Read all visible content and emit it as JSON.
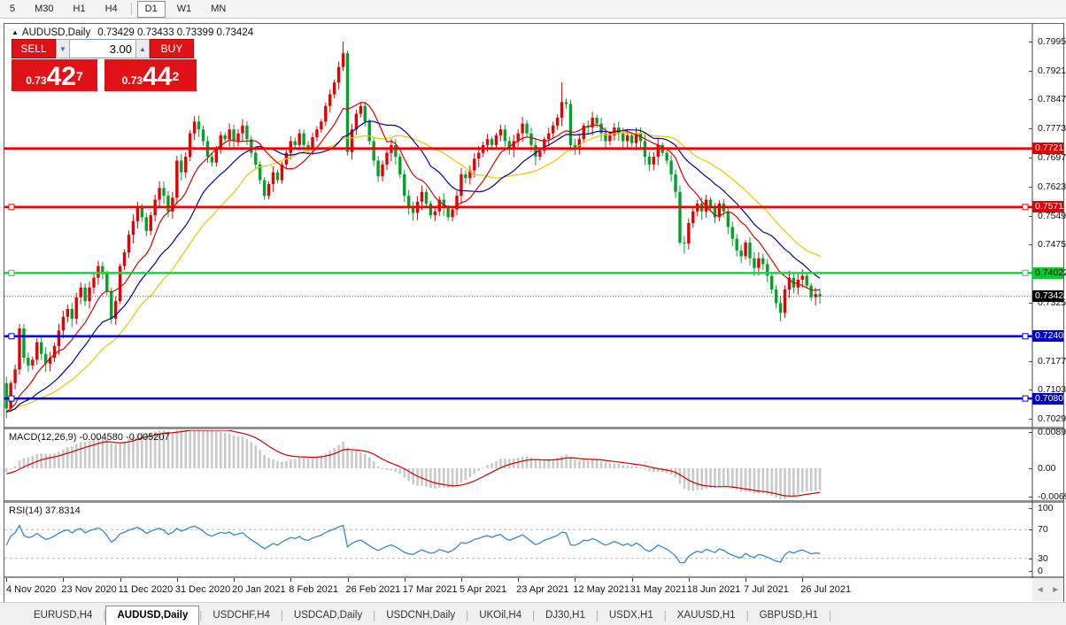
{
  "toolbar": {
    "timeframes": [
      {
        "label": "5",
        "active": false
      },
      {
        "label": "M30",
        "active": false
      },
      {
        "label": "H1",
        "active": false
      },
      {
        "label": "H4",
        "active": false
      },
      {
        "label": "D1",
        "active": true
      },
      {
        "label": "W1",
        "active": false
      },
      {
        "label": "MN",
        "active": false
      }
    ]
  },
  "chart_header": {
    "collapse_icon": "▲",
    "symbol": "AUDUSD,Daily",
    "ohlc_text": "0.73429 0.73433 0.73399 0.73424"
  },
  "trade_panel": {
    "sell_label": "SELL",
    "buy_label": "BUY",
    "volume": "3.00",
    "spin_down_icon": "▼",
    "spin_up_icon": "▲",
    "sell_price": {
      "small": "0.73",
      "big": "42",
      "sup": "7"
    },
    "buy_price": {
      "small": "0.73",
      "big": "44",
      "sup": "2"
    }
  },
  "price_axis": {
    "ticks": [
      {
        "label": "0.79950",
        "value": 0.7995
      },
      {
        "label": "0.79210",
        "value": 0.7921
      },
      {
        "label": "0.78470",
        "value": 0.7847
      },
      {
        "label": "0.77730",
        "value": 0.7773
      },
      {
        "label": "0.76970",
        "value": 0.7697
      },
      {
        "label": "0.76230",
        "value": 0.7623
      },
      {
        "label": "0.75490",
        "value": 0.7549
      },
      {
        "label": "0.74750",
        "value": 0.7475
      },
      {
        "label": "0.73250",
        "value": 0.7325
      },
      {
        "label": "0.71770",
        "value": 0.7177
      },
      {
        "label": "0.71030",
        "value": 0.7103
      },
      {
        "label": "0.70290",
        "value": 0.7029
      }
    ],
    "badges": [
      {
        "label": "0.77212",
        "value": 0.77212,
        "bg": "#dd0000",
        "fg": "#ffffff"
      },
      {
        "label": "0.75712",
        "value": 0.75712,
        "bg": "#dd0000",
        "fg": "#ffffff"
      },
      {
        "label": "0.74022",
        "value": 0.74022,
        "bg": "#00cf2e",
        "fg": "#000000"
      },
      {
        "label": "0.73424",
        "value": 0.73424,
        "bg": "#000000",
        "fg": "#ffffff"
      },
      {
        "label": "0.72402",
        "value": 0.72402,
        "bg": "#0000cc",
        "fg": "#ffffff"
      },
      {
        "label": "0.70807",
        "value": 0.70807,
        "bg": "#0000cc",
        "fg": "#ffffff"
      }
    ]
  },
  "indicator_macd": {
    "label": "MACD(12,26,9) -0.004580 -0.005207",
    "macd_value": -0.00458,
    "signal_value": -0.005207,
    "axis": [
      {
        "label": "0.00890",
        "value": 0.0089
      },
      {
        "label": "0.00",
        "value": 0
      },
      {
        "label": "-0.00697",
        "value": -0.00697
      }
    ]
  },
  "indicator_rsi": {
    "label": "RSI(14) 37.8314",
    "value": 37.8314,
    "axis": [
      {
        "label": "100",
        "value": 100
      },
      {
        "label": "70",
        "value": 70
      },
      {
        "label": "30",
        "value": 30
      },
      {
        "label": "0",
        "value": 0
      }
    ],
    "guide_levels": [
      70,
      30
    ]
  },
  "date_axis": {
    "labels": [
      "4 Nov 2020",
      "23 Nov 2020",
      "11 Dec 2020",
      "31 Dec 2020",
      "20 Jan 2021",
      "8 Feb 2021",
      "26 Feb 2021",
      "17 Mar 2021",
      "5 Apr 2021",
      "23 Apr 2021",
      "12 May 2021",
      "31 May 2021",
      "18 Jun 2021",
      "7 Jul 2021",
      "26 Jul 2021"
    ],
    "bars_per_label": 13
  },
  "scrollbar": {
    "left_arrow": "◄",
    "right_arrow": "►"
  },
  "tabs": {
    "separator": "|",
    "items": [
      {
        "label": "EURUSD,H4",
        "active": false
      },
      {
        "label": "AUDUSD,Daily",
        "active": true
      },
      {
        "label": "USDCHF,H4",
        "active": false
      },
      {
        "label": "USDCAD,Daily",
        "active": false
      },
      {
        "label": "USDCNH,Daily",
        "active": false
      },
      {
        "label": "UKOil,H4",
        "active": false
      },
      {
        "label": "DJ30,H1",
        "active": false
      },
      {
        "label": "USDX,H1",
        "active": false
      },
      {
        "label": "XAUUSD,H1",
        "active": false
      },
      {
        "label": "GBPUSD,H1",
        "active": false
      }
    ]
  },
  "chart_data": {
    "type": "candlestick",
    "symbol": "AUDUSD",
    "timeframe": "Daily",
    "current_ohlc": {
      "open": 0.73429,
      "high": 0.73433,
      "low": 0.73399,
      "close": 0.73424
    },
    "bid": 0.73424,
    "levels": [
      {
        "value": 0.77212,
        "color": "#ee0000",
        "end_markers": false
      },
      {
        "value": 0.75712,
        "color": "#ee0000",
        "end_markers": true
      },
      {
        "value": 0.74022,
        "color": "#00e135",
        "end_markers": true
      },
      {
        "value": 0.72402,
        "color": "#0000e1",
        "end_markers": true
      },
      {
        "value": 0.70807,
        "color": "#0000e1",
        "end_markers": true
      }
    ],
    "ma_periods": {
      "fast": 10,
      "mid": 20,
      "slow": 30
    },
    "macd_params": [
      12,
      26,
      9
    ],
    "rsi_period": 14,
    "colors": {
      "up": "#e60000",
      "down": "#00a32a",
      "ma_fast": "#dd0000",
      "ma_mid": "#000093",
      "ma_slow": "#e8c800",
      "macd_hist": "#c9c9c9",
      "macd_signal": "#cc0000",
      "rsi": "#3a87c8",
      "bid_line": "#555555"
    },
    "first_open": 0.712,
    "closes": [
      0.7055,
      0.712,
      0.7155,
      0.726,
      0.7185,
      0.7165,
      0.718,
      0.7225,
      0.7195,
      0.717,
      0.7185,
      0.7215,
      0.7255,
      0.729,
      0.731,
      0.7285,
      0.734,
      0.7365,
      0.733,
      0.7365,
      0.739,
      0.742,
      0.74,
      0.7355,
      0.7285,
      0.733,
      0.742,
      0.7455,
      0.75,
      0.7535,
      0.757,
      0.7545,
      0.751,
      0.755,
      0.759,
      0.762,
      0.76,
      0.756,
      0.7595,
      0.769,
      0.766,
      0.77,
      0.776,
      0.779,
      0.777,
      0.774,
      0.77,
      0.7685,
      0.772,
      0.7755,
      0.7745,
      0.777,
      0.774,
      0.776,
      0.778,
      0.7745,
      0.771,
      0.768,
      0.764,
      0.76,
      0.763,
      0.766,
      0.764,
      0.768,
      0.771,
      0.774,
      0.773,
      0.776,
      0.773,
      0.772,
      0.775,
      0.777,
      0.779,
      0.783,
      0.786,
      0.789,
      0.793,
      0.7965,
      0.7712,
      0.777,
      0.781,
      0.783,
      0.779,
      0.774,
      0.769,
      0.765,
      0.768,
      0.771,
      0.773,
      0.77,
      0.7655,
      0.76,
      0.757,
      0.7556,
      0.7585,
      0.761,
      0.758,
      0.755,
      0.756,
      0.759,
      0.757,
      0.7545,
      0.7565,
      0.76,
      0.7655,
      0.7645,
      0.7665,
      0.7695,
      0.771,
      0.773,
      0.7745,
      0.773,
      0.7755,
      0.777,
      0.774,
      0.772,
      0.774,
      0.776,
      0.7785,
      0.776,
      0.773,
      0.77,
      0.7715,
      0.7745,
      0.776,
      0.778,
      0.78,
      0.784,
      0.7835,
      0.773,
      0.7725,
      0.7745,
      0.778,
      0.7775,
      0.78,
      0.7785,
      0.776,
      0.774,
      0.7755,
      0.7775,
      0.776,
      0.774,
      0.7755,
      0.7735,
      0.776,
      0.774,
      0.77,
      0.768,
      0.77,
      0.773,
      0.771,
      0.769,
      0.7655,
      0.761,
      0.748,
      0.7478,
      0.753,
      0.756,
      0.758,
      0.756,
      0.759,
      0.757,
      0.7545,
      0.758,
      0.756,
      0.752,
      0.749,
      0.746,
      0.7445,
      0.748,
      0.744,
      0.7415,
      0.744,
      0.7425,
      0.7395,
      0.736,
      0.7325,
      0.73,
      0.736,
      0.739,
      0.7365,
      0.7385,
      0.7395,
      0.737,
      0.734,
      0.7348,
      0.7342
    ],
    "wick_overrides": {
      "0": {
        "low": 0.703
      },
      "3": {
        "high": 0.7272
      },
      "77": {
        "high": 0.7995
      },
      "127": {
        "high": 0.7891
      },
      "154": {
        "low": 0.7475
      },
      "155": {
        "low": 0.7452
      },
      "177": {
        "low": 0.7278
      },
      "182": {
        "high": 0.7412
      }
    },
    "warmup_closes": [
      0.716,
      0.715,
      0.7165,
      0.714,
      0.712,
      0.7135,
      0.711,
      0.709,
      0.7105,
      0.712,
      0.71,
      0.708,
      0.706,
      0.7075,
      0.709,
      0.707,
      0.705,
      0.7065,
      0.704,
      0.7025,
      0.704,
      0.706,
      0.7045,
      0.703,
      0.7055,
      0.707,
      0.7055,
      0.7035,
      0.705,
      0.703,
      0.702,
      0.7035,
      0.705,
      0.704,
      0.706,
      0.7045,
      0.703,
      0.7045,
      0.706,
      0.7048
    ]
  }
}
